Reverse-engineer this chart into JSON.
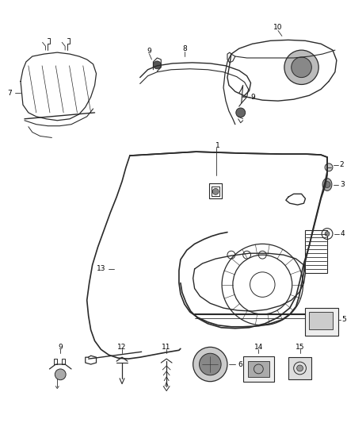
{
  "background_color": "#ffffff",
  "fig_width": 4.38,
  "fig_height": 5.33,
  "dpi": 100,
  "line_color": "#2a2a2a",
  "label_color": "#000000",
  "label_fontsize": 6.5
}
